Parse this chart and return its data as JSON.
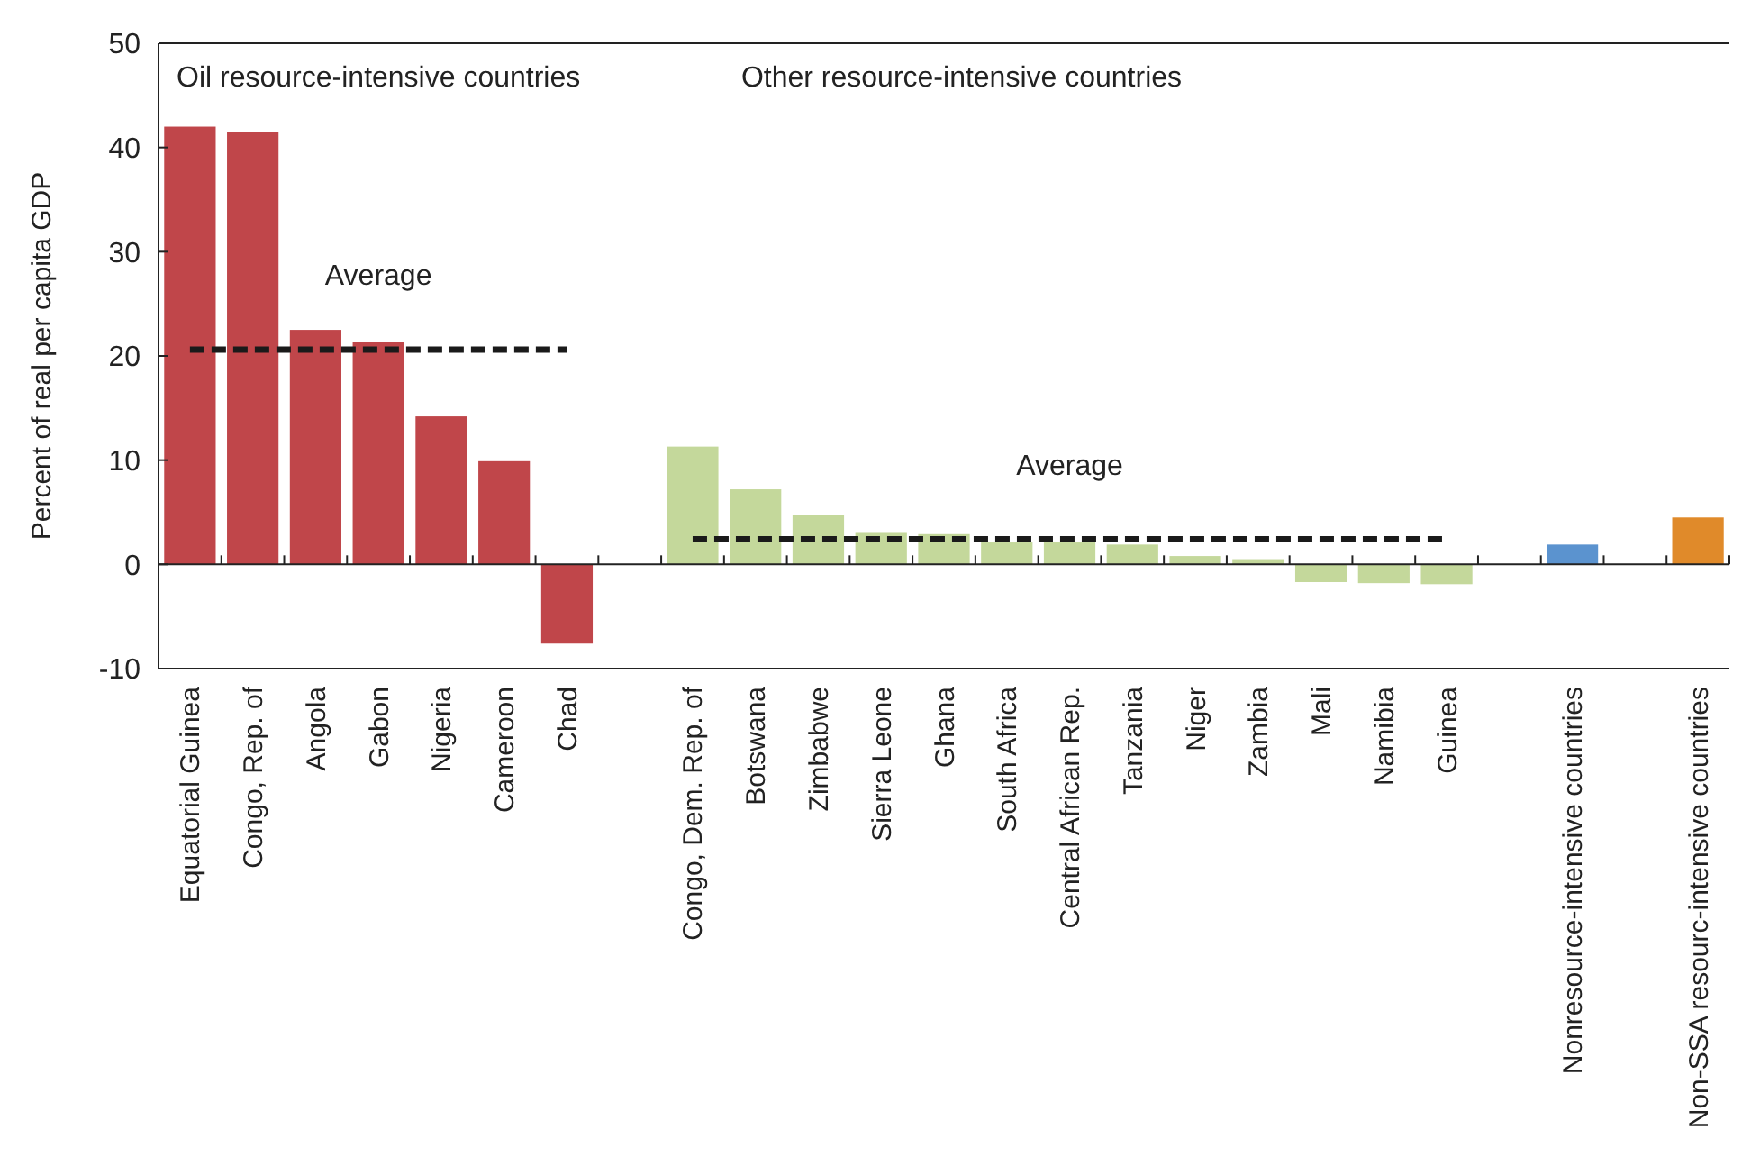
{
  "chart_data": {
    "type": "bar",
    "ylabel": "Percent of real per capita GDP",
    "categories": [
      "Equatorial Guinea",
      "Congo, Rep. of",
      "Angola",
      "Gabon",
      "Nigeria",
      "Cameroon",
      "Chad",
      null,
      "Congo, Dem. Rep. of",
      "Botswana",
      "Zimbabwe",
      "Sierra Leone",
      "Ghana",
      "South Africa",
      "Central African Rep.",
      "Tanzania",
      "Niger",
      "Zambia",
      "Mali",
      "Namibia",
      "Guinea",
      null,
      "Nonresource-intensive countries",
      null,
      "Non-SSA resourc-intensive countries"
    ],
    "series": [
      {
        "values": [
          42.0,
          41.5,
          22.5,
          21.3,
          14.2,
          9.9,
          -7.6,
          null,
          11.3,
          7.2,
          4.7,
          3.1,
          2.9,
          2.1,
          2.1,
          1.9,
          0.8,
          0.5,
          -1.7,
          -1.8,
          -1.9,
          null,
          1.9,
          null,
          4.5
        ],
        "colors": [
          "#c0464a",
          "#c0464a",
          "#c0464a",
          "#c0464a",
          "#c0464a",
          "#c0464a",
          "#c0464a",
          null,
          "#c4d89b",
          "#c4d89b",
          "#c4d89b",
          "#c4d89b",
          "#c4d89b",
          "#c4d89b",
          "#c4d89b",
          "#c4d89b",
          "#c4d89b",
          "#c4d89b",
          "#c4d89b",
          "#c4d89b",
          "#c4d89b",
          null,
          "#5b93cf",
          null,
          "#e08a2a"
        ]
      },
      {
        "type": "line",
        "name": "Average",
        "color": "#1a1a1a",
        "line_style": "dashed",
        "values": [
          20.6,
          20.6,
          20.6,
          20.6,
          20.6,
          20.6,
          20.6,
          null,
          null,
          null,
          null,
          null,
          null,
          null,
          null,
          null,
          null,
          null,
          null,
          null,
          null,
          null,
          null,
          null,
          null
        ]
      },
      {
        "type": "line",
        "name": "Average",
        "color": "#1a1a1a",
        "line_style": "dashed",
        "values": [
          null,
          null,
          null,
          null,
          null,
          null,
          null,
          null,
          2.4,
          2.4,
          2.4,
          2.4,
          2.4,
          2.4,
          2.4,
          2.4,
          2.4,
          2.4,
          2.4,
          2.4,
          2.4,
          null,
          null,
          null,
          null
        ]
      }
    ],
    "annotations": [
      "Oil resource-intensive countries",
      "Other resource-intensive countries"
    ],
    "ylim": [
      -10,
      50
    ],
    "yticks": [
      -10,
      0,
      10,
      20,
      30,
      40,
      50
    ],
    "grid": false
  }
}
